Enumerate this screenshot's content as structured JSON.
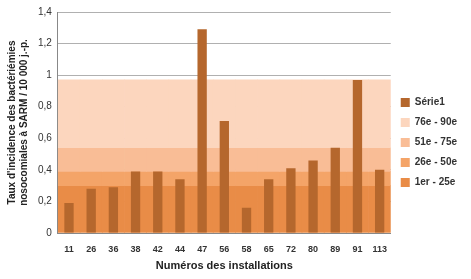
{
  "chart_data": {
    "type": "bar",
    "x_label": "Numéros des installations",
    "y_label": [
      "Taux d'incidence des bactériémies",
      "nosocomiales à SARM / 10 000 j.-p."
    ],
    "categories": [
      "11",
      "26",
      "36",
      "38",
      "42",
      "44",
      "47",
      "56",
      "58",
      "65",
      "72",
      "80",
      "89",
      "91",
      "113"
    ],
    "bands": [
      {
        "name": "76e - 90e",
        "range": [
          0.54,
          0.97
        ],
        "color": "#fcd6be"
      },
      {
        "name": "51e - 75e",
        "range": [
          0.39,
          0.54
        ],
        "color": "#f9bd96"
      },
      {
        "name": "26e - 50e",
        "range": [
          0.3,
          0.39
        ],
        "color": "#f4a468"
      },
      {
        "name": "1er - 25e",
        "range": [
          0,
          0.3
        ],
        "color": "#e98c47"
      }
    ],
    "series": [
      {
        "name": "Série1",
        "color": "#b5672d",
        "values": [
          0.19,
          0.28,
          0.29,
          0.39,
          0.39,
          0.34,
          1.29,
          0.71,
          0.16,
          0.34,
          0.41,
          0.46,
          0.54,
          0.97,
          0.4
        ]
      }
    ],
    "ylim": [
      0,
      1.4
    ],
    "yticks": [
      0,
      {
        "value": 0.2,
        "label": "0,2"
      },
      {
        "value": 0.4,
        "label": "0,4"
      },
      {
        "value": 0.6,
        "label": "0,6"
      },
      {
        "value": 0.8,
        "label": "0,8"
      },
      1,
      {
        "value": 1.2,
        "label": "1,2"
      },
      {
        "value": 1.4,
        "label": "1,4"
      }
    ],
    "grid": true,
    "legend": "right"
  }
}
